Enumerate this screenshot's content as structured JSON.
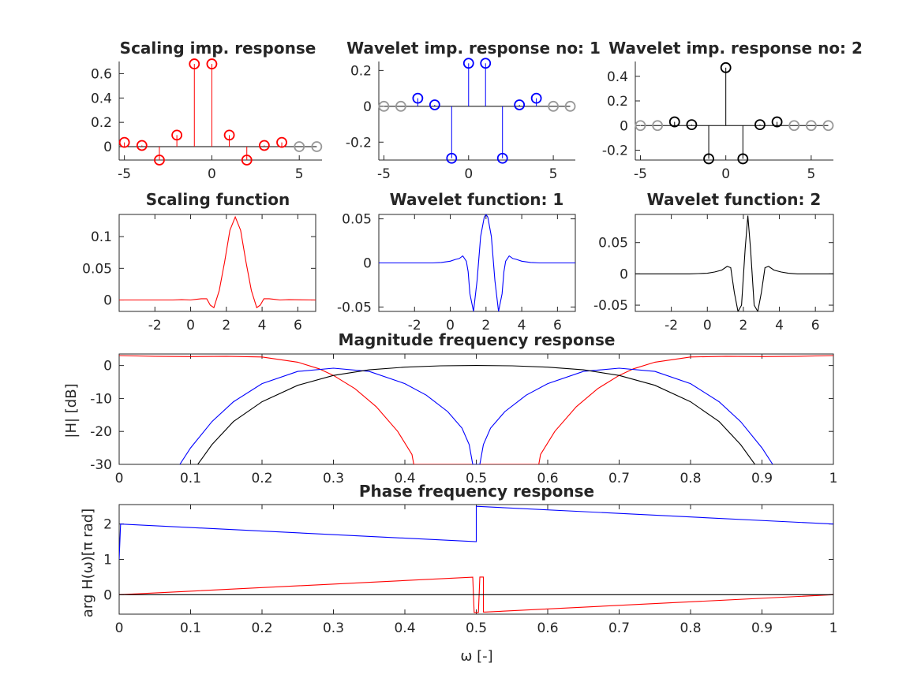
{
  "colors": {
    "scaling": "#ff0000",
    "wavelet1": "#0000ff",
    "wavelet2": "#000000",
    "padding": "#999999",
    "axis": "#262626"
  },
  "panels": {
    "scaling_imp": {
      "title": "Scaling imp. response"
    },
    "wavelet1_imp": {
      "title": "Wavelet imp. response no: 1"
    },
    "wavelet2_imp": {
      "title": "Wavelet imp. response no: 2"
    },
    "scaling_fn": {
      "title": "Scaling function"
    },
    "wavelet1_fn": {
      "title": "Wavelet function: 1"
    },
    "wavelet2_fn": {
      "title": "Wavelet function: 2"
    },
    "magnitude": {
      "title": "Magnitude frequency response",
      "ylabel": "|H| [dB]"
    },
    "phase": {
      "title": "Phase frequency response",
      "ylabel": "arg H(ω)[π rad]",
      "xlabel": "ω [-]"
    }
  },
  "chart_data": [
    {
      "id": "scaling_imp",
      "type": "stem",
      "title": "Scaling imp. response",
      "xlim": [
        -5.3,
        6.3
      ],
      "ylim": [
        -0.11,
        0.7
      ],
      "xticks": [
        -5,
        0,
        5
      ],
      "yticks": [
        0,
        0.2,
        0.4,
        0.6
      ],
      "series": [
        {
          "color": "#ff0000",
          "x": [
            -5,
            -4,
            -3,
            -2,
            -1,
            0,
            1,
            2,
            3,
            4
          ],
          "y": [
            0.035,
            0.01,
            -0.11,
            0.095,
            0.68,
            0.68,
            0.095,
            -0.11,
            0.01,
            0.035
          ]
        },
        {
          "color": "#999999",
          "x": [
            5,
            6
          ],
          "y": [
            0,
            0
          ]
        }
      ]
    },
    {
      "id": "wavelet1_imp",
      "type": "stem",
      "title": "Wavelet imp. response no: 1",
      "xlim": [
        -5.3,
        6.3
      ],
      "ylim": [
        -0.3,
        0.25
      ],
      "xticks": [
        -5,
        0,
        5
      ],
      "yticks": [
        -0.2,
        0,
        0.2
      ],
      "series": [
        {
          "color": "#999999",
          "x": [
            -5,
            -4
          ],
          "y": [
            0,
            0
          ]
        },
        {
          "color": "#0000ff",
          "x": [
            -3,
            -2,
            -1,
            0,
            1,
            2,
            3,
            4
          ],
          "y": [
            0.045,
            0.008,
            -0.29,
            0.24,
            0.24,
            -0.29,
            0.008,
            0.045
          ]
        },
        {
          "color": "#999999",
          "x": [
            5,
            6
          ],
          "y": [
            0,
            0
          ]
        }
      ]
    },
    {
      "id": "wavelet2_imp",
      "type": "stem",
      "title": "Wavelet imp. response no: 2",
      "xlim": [
        -5.3,
        6.3
      ],
      "ylim": [
        -0.28,
        0.52
      ],
      "xticks": [
        -5,
        0,
        5
      ],
      "yticks": [
        -0.2,
        0,
        0.2,
        0.4
      ],
      "series": [
        {
          "color": "#999999",
          "x": [
            -5,
            -4
          ],
          "y": [
            0,
            0
          ]
        },
        {
          "color": "#000000",
          "x": [
            -3,
            -2,
            -1,
            0,
            1,
            2,
            3
          ],
          "y": [
            0.03,
            0.007,
            -0.27,
            0.47,
            -0.27,
            0.007,
            0.03
          ]
        },
        {
          "color": "#999999",
          "x": [
            4,
            5,
            6
          ],
          "y": [
            0,
            0,
            0
          ]
        }
      ]
    },
    {
      "id": "scaling_fn",
      "type": "line",
      "title": "Scaling function",
      "xlim": [
        -4,
        7
      ],
      "ylim": [
        -0.018,
        0.135
      ],
      "xticks": [
        -2,
        0,
        2,
        4,
        6
      ],
      "yticks": [
        0,
        0.05,
        0.1
      ],
      "series": [
        {
          "color": "#ff0000",
          "x": [
            -4,
            -1,
            -0.5,
            0,
            0.3,
            0.6,
            0.9,
            1.1,
            1.3,
            1.6,
            1.9,
            2.2,
            2.5,
            2.8,
            3.1,
            3.4,
            3.7,
            3.9,
            4.1,
            4.4,
            4.7,
            5,
            5.5,
            7
          ],
          "y": [
            0,
            0,
            0.0005,
            0,
            0.001,
            0.002,
            0.002,
            -0.008,
            -0.012,
            0.015,
            0.06,
            0.11,
            0.131,
            0.11,
            0.06,
            0.015,
            -0.012,
            -0.008,
            0.002,
            0.002,
            0.001,
            0,
            0.0005,
            0
          ]
        }
      ]
    },
    {
      "id": "wavelet1_fn",
      "type": "line",
      "title": "Wavelet function: 1",
      "xlim": [
        -4,
        7
      ],
      "ylim": [
        -0.055,
        0.055
      ],
      "xticks": [
        -2,
        0,
        2,
        4,
        6
      ],
      "yticks": [
        -0.05,
        0,
        0.05
      ],
      "series": [
        {
          "color": "#0000ff",
          "x": [
            -4,
            -1,
            -0.5,
            0,
            0.3,
            0.5,
            0.7,
            0.9,
            1.0,
            1.1,
            1.3,
            1.5,
            1.7,
            1.9,
            2.0,
            2.1,
            2.3,
            2.5,
            2.7,
            2.9,
            3.0,
            3.1,
            3.3,
            3.5,
            3.7,
            4,
            4.5,
            5,
            7
          ],
          "y": [
            0,
            0,
            0.0005,
            0.002,
            0.004,
            0.005,
            0.008,
            0.002,
            -0.01,
            -0.035,
            -0.055,
            -0.02,
            0.03,
            0.052,
            0.055,
            0.052,
            0.03,
            -0.02,
            -0.055,
            -0.035,
            -0.01,
            0.002,
            0.008,
            0.005,
            0.004,
            0.002,
            0.0005,
            0,
            0
          ]
        }
      ]
    },
    {
      "id": "wavelet2_fn",
      "type": "line",
      "title": "Wavelet function: 2",
      "xlim": [
        -4,
        7
      ],
      "ylim": [
        -0.06,
        0.095
      ],
      "xticks": [
        -2,
        0,
        2,
        4,
        6
      ],
      "yticks": [
        -0.05,
        0,
        0.05
      ],
      "series": [
        {
          "color": "#000000",
          "x": [
            -4,
            -1,
            -0.5,
            0,
            0.4,
            0.8,
            1.1,
            1.3,
            1.5,
            1.7,
            1.9,
            2.1,
            2.25,
            2.4,
            2.6,
            2.8,
            3.0,
            3.2,
            3.4,
            3.7,
            4.1,
            4.5,
            5,
            7
          ],
          "y": [
            0,
            0,
            0.0005,
            0.001,
            0.003,
            0.006,
            0.012,
            0.01,
            -0.03,
            -0.06,
            -0.05,
            0.04,
            0.093,
            0.04,
            -0.05,
            -0.06,
            -0.03,
            0.01,
            0.012,
            0.006,
            0.003,
            0.001,
            0,
            0
          ]
        }
      ]
    },
    {
      "id": "magnitude",
      "type": "line",
      "title": "Magnitude frequency response",
      "xlim": [
        0,
        1
      ],
      "ylim": [
        -30,
        3.5
      ],
      "ylabel": "|H| [dB]",
      "xticks": [
        0,
        0.1,
        0.2,
        0.3,
        0.4,
        0.5,
        0.6,
        0.7,
        0.8,
        0.9,
        1
      ],
      "yticks": [
        -30,
        -20,
        -10,
        0
      ],
      "series": [
        {
          "color": "#ff0000",
          "x": [
            0,
            0.05,
            0.1,
            0.15,
            0.2,
            0.25,
            0.28,
            0.3,
            0.33,
            0.36,
            0.39,
            0.41,
            0.4125,
            0.5875,
            0.59,
            0.61,
            0.64,
            0.67,
            0.7,
            0.72,
            0.75,
            0.8,
            0.85,
            0.9,
            0.95,
            1
          ],
          "y": [
            3.01,
            2.8,
            2.7,
            2.8,
            2.6,
            1.0,
            -1.0,
            -3.0,
            -7.0,
            -12.5,
            -20.0,
            -27.0,
            -30.0,
            -30.0,
            -27.0,
            -20.0,
            -12.5,
            -7.0,
            -3.0,
            -1.0,
            1.0,
            2.6,
            2.8,
            2.7,
            2.8,
            3.01
          ]
        },
        {
          "color": "#0000ff",
          "x": [
            0.085,
            0.1,
            0.13,
            0.16,
            0.2,
            0.25,
            0.3,
            0.35,
            0.4,
            0.43,
            0.46,
            0.48,
            0.49,
            0.495,
            0.5,
            0.505,
            0.51,
            0.52,
            0.54,
            0.57,
            0.6,
            0.65,
            0.7,
            0.75,
            0.8,
            0.84,
            0.87,
            0.9,
            0.915
          ],
          "y": [
            -30,
            -25,
            -17,
            -11,
            -5.5,
            -1.8,
            -0.8,
            -1.8,
            -5.5,
            -9.0,
            -14.0,
            -19.0,
            -24.0,
            -30.0,
            -30.0,
            -30.0,
            -24.0,
            -19.0,
            -14.0,
            -9.0,
            -5.5,
            -1.8,
            -0.8,
            -1.8,
            -5.5,
            -11,
            -17,
            -25,
            -30
          ]
        },
        {
          "color": "#000000",
          "x": [
            0.11,
            0.13,
            0.16,
            0.2,
            0.25,
            0.3,
            0.35,
            0.4,
            0.45,
            0.5,
            0.55,
            0.6,
            0.65,
            0.7,
            0.75,
            0.8,
            0.84,
            0.87,
            0.89
          ],
          "y": [
            -30,
            -24,
            -17,
            -11,
            -6,
            -3,
            -1.3,
            -0.5,
            -0.1,
            0,
            -0.1,
            -0.5,
            -1.3,
            -3,
            -6,
            -11,
            -17,
            -24,
            -30
          ]
        }
      ]
    },
    {
      "id": "phase",
      "type": "line",
      "title": "Phase frequency response",
      "xlim": [
        0,
        1
      ],
      "ylim": [
        -0.55,
        2.55
      ],
      "ylabel": "arg H(ω)[π rad]",
      "xlabel": "ω [-]",
      "xticks": [
        0,
        0.1,
        0.2,
        0.3,
        0.4,
        0.5,
        0.6,
        0.7,
        0.8,
        0.9,
        1
      ],
      "yticks": [
        0,
        1,
        2
      ],
      "series": [
        {
          "color": "#0000ff",
          "x": [
            0,
            0.002,
            0.5,
            0.5,
            1
          ],
          "y": [
            1.0,
            2.0,
            1.5,
            2.5,
            2.0
          ]
        },
        {
          "color": "#ff0000",
          "x": [
            0,
            0.495,
            0.497,
            0.5,
            0.503,
            0.505,
            0.505,
            0.51,
            0.51,
            0.513,
            1
          ],
          "y": [
            0,
            0.495,
            -0.5,
            -0.5,
            -0.5,
            0.5,
            0.5,
            0.5,
            -0.49,
            -0.49,
            0
          ]
        },
        {
          "color": "#000000",
          "x": [
            0,
            1
          ],
          "y": [
            0,
            0
          ]
        }
      ]
    }
  ]
}
